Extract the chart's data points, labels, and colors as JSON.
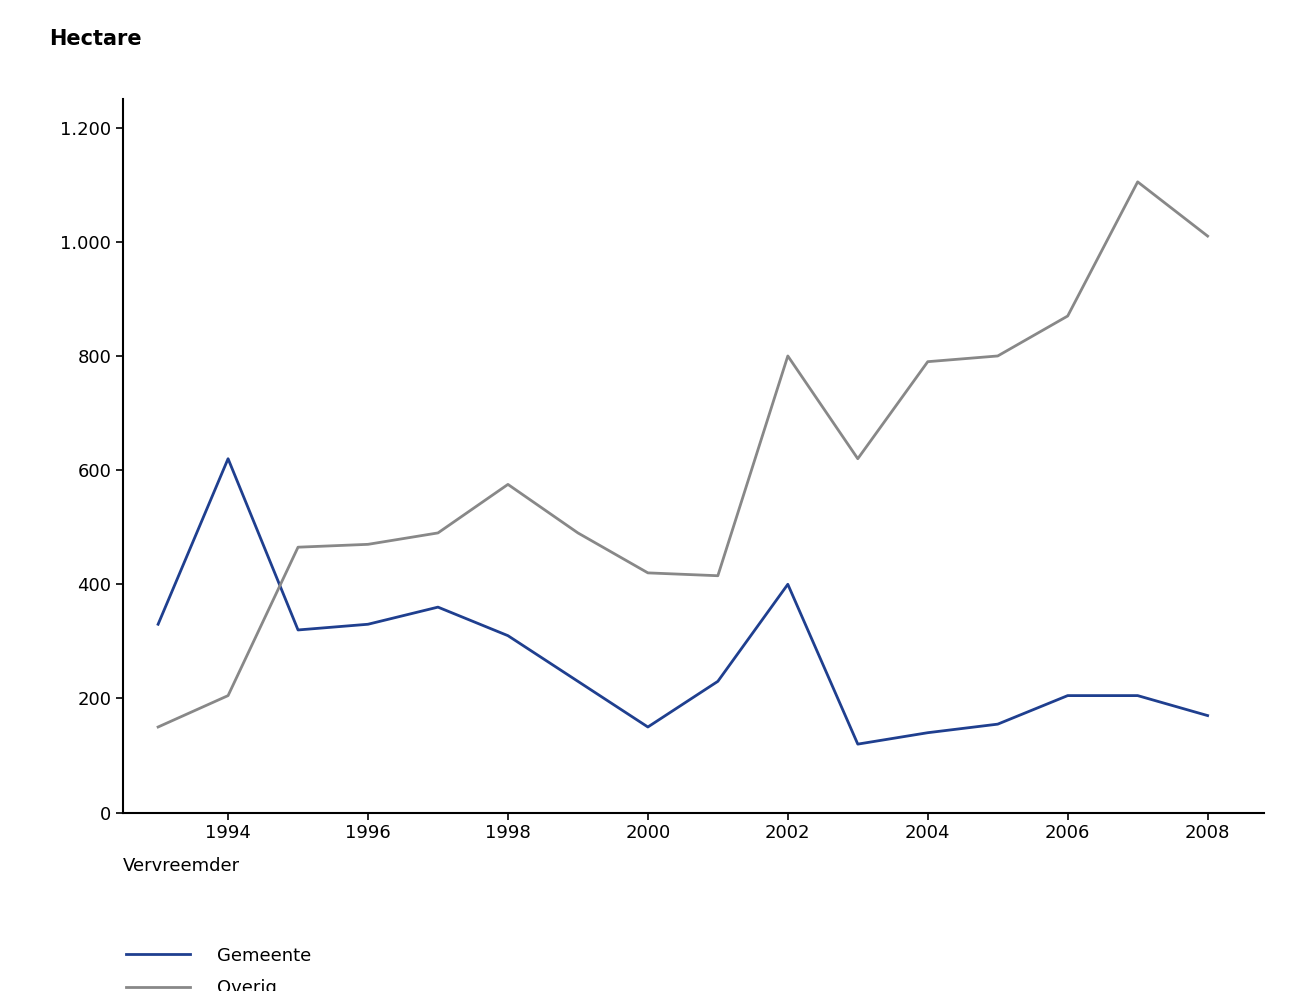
{
  "years": [
    1993,
    1994,
    1995,
    1996,
    1997,
    1998,
    1999,
    2000,
    2001,
    2002,
    2003,
    2004,
    2005,
    2006,
    2007,
    2008
  ],
  "gemeente": [
    330,
    620,
    320,
    330,
    360,
    310,
    230,
    150,
    230,
    400,
    120,
    140,
    155,
    205,
    205,
    170
  ],
  "overig": [
    150,
    205,
    465,
    470,
    490,
    575,
    490,
    420,
    415,
    800,
    620,
    790,
    800,
    870,
    1105,
    1010
  ],
  "gemeente_color": "#1F3F8F",
  "overig_color": "#888888",
  "ylabel": "Hectare",
  "ylim": [
    0,
    1250
  ],
  "yticks": [
    0,
    200,
    400,
    600,
    800,
    1000,
    1200
  ],
  "ytick_labels": [
    "0",
    "200",
    "400",
    "600",
    "800",
    "1.000",
    "1.200"
  ],
  "xlim_left": 1992.5,
  "xlim_right": 2008.8,
  "xticks": [
    1994,
    1996,
    1998,
    2000,
    2002,
    2004,
    2006,
    2008
  ],
  "legend_title": "Vervreemder",
  "legend_gemeente": "Gemeente",
  "legend_overig": "Overig",
  "background_color": "#ffffff",
  "line_width": 2.0
}
